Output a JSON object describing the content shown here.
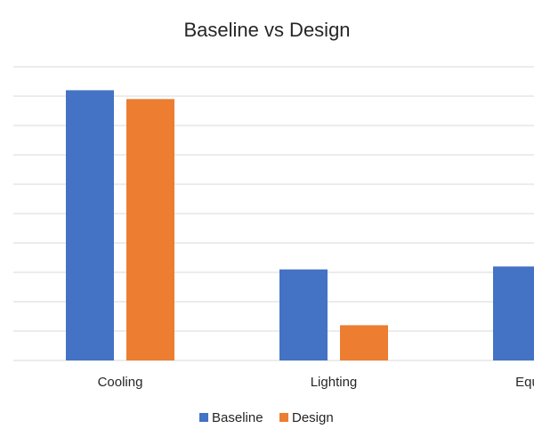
{
  "chart_data": {
    "type": "bar",
    "title": "Baseline vs Design",
    "categories": [
      "Cooling",
      "Lighting",
      "Equipment"
    ],
    "series": [
      {
        "name": "Baseline",
        "color": "#4472c4",
        "values": [
          9.2,
          3.1,
          3.2
        ]
      },
      {
        "name": "Design",
        "color": "#ed7d31",
        "values": [
          8.9,
          1.2,
          null
        ]
      }
    ],
    "ylim": [
      0,
      10
    ],
    "yticks": [
      0,
      1,
      2,
      3,
      4,
      5,
      6,
      7,
      8,
      9,
      10
    ],
    "grid": true,
    "legend": "bottom"
  }
}
